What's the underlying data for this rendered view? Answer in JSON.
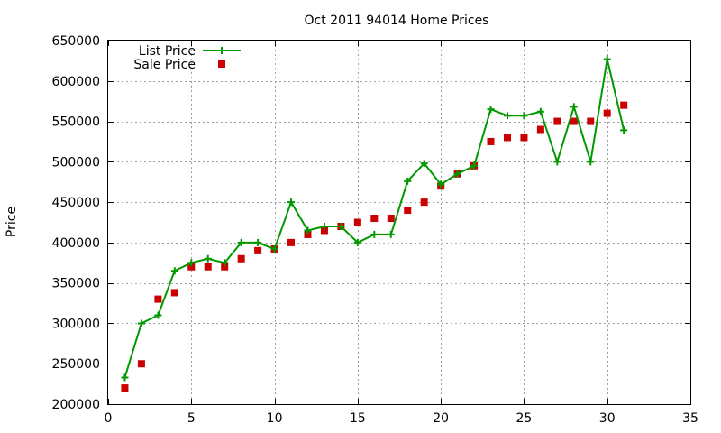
{
  "chart_data": {
    "type": "line",
    "title": "Oct 2011 94014 Home Prices",
    "xlabel": "",
    "ylabel": "Price",
    "xlim": [
      0,
      35
    ],
    "ylim": [
      200000,
      650000
    ],
    "x_ticks": [
      "0",
      "5",
      "10",
      "15",
      "20",
      "25",
      "30",
      "35"
    ],
    "y_ticks": [
      "200000",
      "250000",
      "300000",
      "350000",
      "400000",
      "450000",
      "500000",
      "550000",
      "600000",
      "650000"
    ],
    "grid": true,
    "legend_position": "top-left",
    "series": [
      {
        "name": "List Price",
        "style": "lines+crosses",
        "color": "#009900",
        "x": [
          1,
          2,
          3,
          4,
          5,
          6,
          7,
          8,
          9,
          10,
          11,
          12,
          13,
          14,
          15,
          16,
          17,
          18,
          19,
          20,
          21,
          22,
          23,
          24,
          25,
          26,
          27,
          28,
          29,
          30,
          31
        ],
        "y": [
          233000,
          300000,
          310000,
          365000,
          375000,
          380000,
          375000,
          400000,
          400000,
          392000,
          450000,
          415000,
          420000,
          420000,
          400000,
          410000,
          410000,
          476000,
          498000,
          472000,
          485000,
          495000,
          565000,
          557000,
          557000,
          562000,
          500000,
          568000,
          500000,
          627000,
          539000
        ]
      },
      {
        "name": "Sale Price",
        "style": "squares",
        "color": "#cc0000",
        "x": [
          1,
          2,
          3,
          4,
          5,
          6,
          7,
          8,
          9,
          10,
          11,
          12,
          13,
          14,
          15,
          16,
          17,
          18,
          19,
          20,
          21,
          22,
          23,
          24,
          25,
          26,
          27,
          28,
          29,
          30,
          31
        ],
        "y": [
          220000,
          250000,
          330000,
          338000,
          370000,
          370000,
          370000,
          380000,
          390000,
          392000,
          400000,
          410000,
          415000,
          420000,
          425000,
          430000,
          430000,
          440000,
          450000,
          470000,
          485000,
          495000,
          525000,
          530000,
          530000,
          540000,
          550000,
          550000,
          550000,
          560000,
          570000
        ]
      }
    ]
  }
}
